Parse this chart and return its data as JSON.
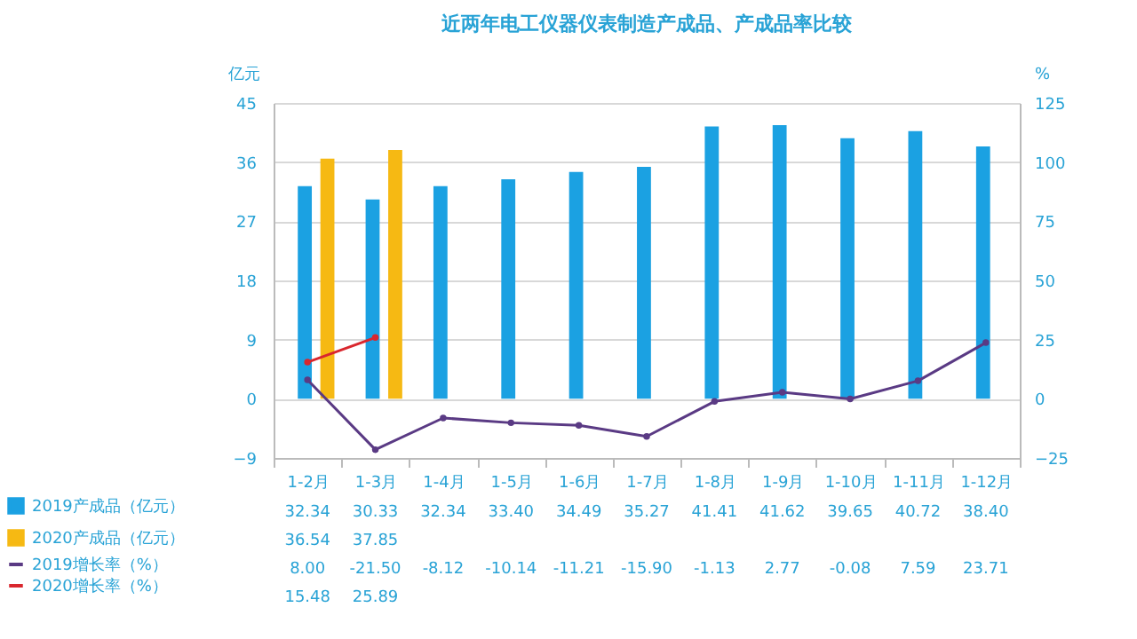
{
  "chart_data": {
    "type": "bar",
    "title": "近两年电工仪器仪表制造产成品、产成品率比较",
    "ylabel": "亿元",
    "y2label": "%",
    "categories": [
      "1-2月",
      "1-3月",
      "1-4月",
      "1-5月",
      "1-6月",
      "1-7月",
      "1-8月",
      "1-9月",
      "1-10月",
      "1-11月",
      "1-12月"
    ],
    "series": [
      {
        "name": "2019产成品（亿元）",
        "color": "#1ba1e2",
        "values": [
          32.34,
          30.33,
          32.34,
          33.4,
          34.49,
          35.27,
          41.41,
          41.62,
          39.65,
          40.72,
          38.4
        ],
        "value_labels": [
          "32.34",
          "30.33",
          "32.34",
          "33.40",
          "34.49",
          "35.27",
          "41.41",
          "41.62",
          "39.65",
          "40.72",
          "38.40"
        ]
      },
      {
        "name": "2020产成品（亿元）",
        "color": "#f6b913",
        "values": [
          36.54,
          37.85,
          null,
          null,
          null,
          null,
          null,
          null,
          null,
          null,
          null
        ],
        "value_labels": [
          "36.54",
          "37.85",
          null,
          null,
          null,
          null,
          null,
          null,
          null,
          null,
          null
        ]
      },
      {
        "name": "2019增长率（%）",
        "type": "line",
        "axis": "y2",
        "color": "#5a3a84",
        "values": [
          8.0,
          -21.5,
          -8.12,
          -10.14,
          -11.21,
          -15.9,
          -1.13,
          2.77,
          -0.08,
          7.59,
          23.71
        ],
        "value_labels": [
          "8.00",
          "-21.50",
          "-8.12",
          "-10.14",
          "-11.21",
          "-15.90",
          "-1.13",
          "2.77",
          "-0.08",
          "7.59",
          "23.71"
        ]
      },
      {
        "name": "2020增长率（%）",
        "type": "line",
        "axis": "y2",
        "color": "#d9272e",
        "values": [
          15.48,
          25.89,
          null,
          null,
          null,
          null,
          null,
          null,
          null,
          null,
          null
        ],
        "value_labels": [
          "15.48",
          "25.89",
          null,
          null,
          null,
          null,
          null,
          null,
          null,
          null,
          null
        ]
      }
    ],
    "ylim": [
      -9,
      45
    ],
    "yticks": [
      -9,
      0,
      9,
      18,
      27,
      36,
      45
    ],
    "y2lim": [
      -25,
      125
    ],
    "y2ticks": [
      -25,
      0,
      25,
      50,
      75,
      100,
      125
    ],
    "grid": "y",
    "legend": "bottom",
    "marker": "circle"
  }
}
